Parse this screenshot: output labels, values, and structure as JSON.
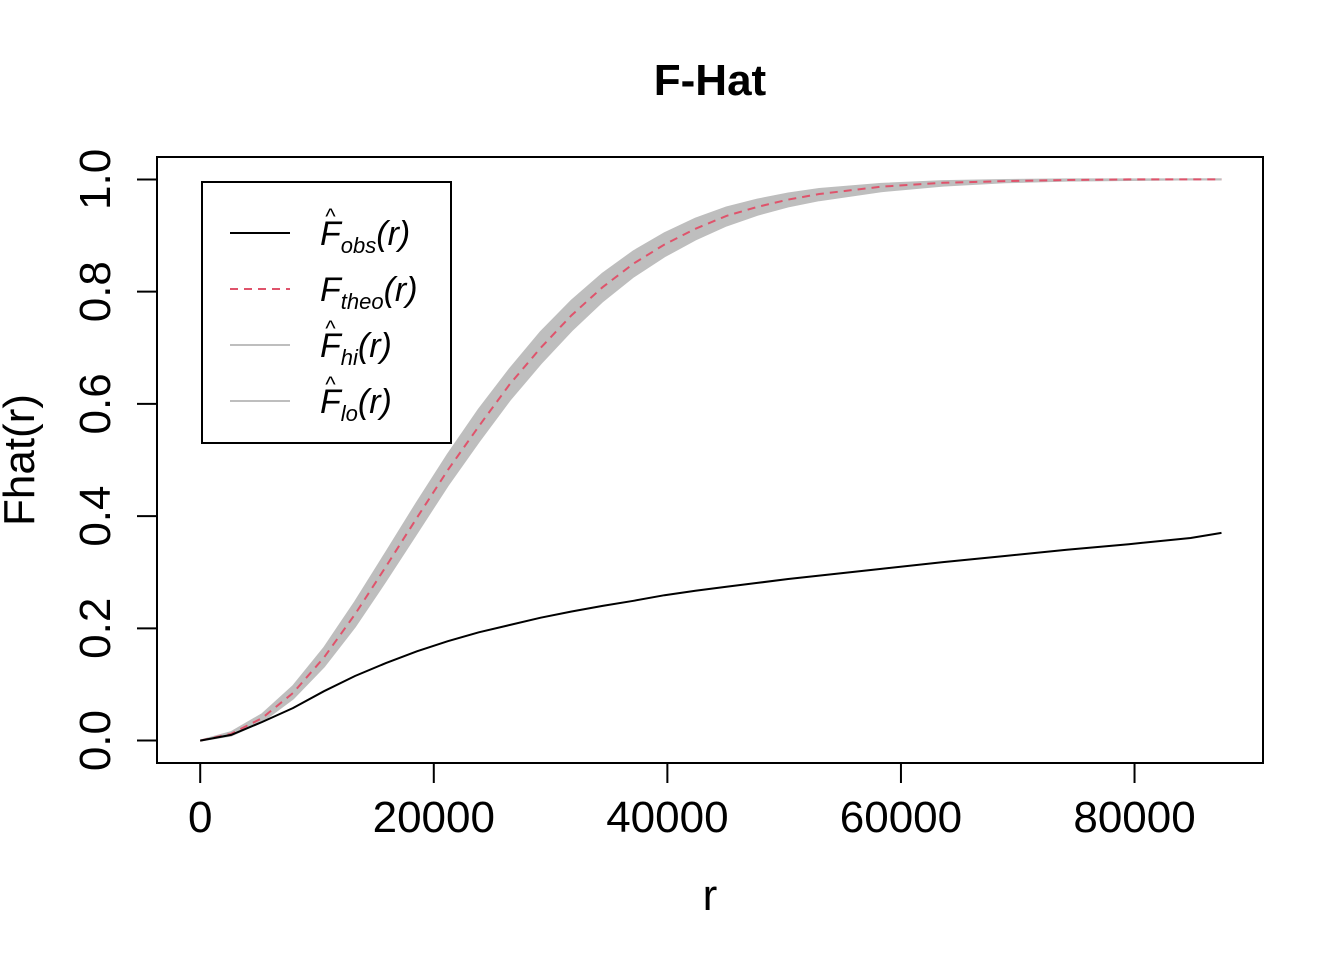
{
  "chart_data": {
    "type": "line",
    "title": "F-Hat",
    "xlabel": "r",
    "ylabel": "Fhat(r)",
    "xlim": [
      -3700,
      91000
    ],
    "ylim": [
      -0.04,
      1.04
    ],
    "x_ticks": [
      "0",
      "20000",
      "40000",
      "60000",
      "80000"
    ],
    "x_tick_values": [
      0,
      20000,
      40000,
      60000,
      80000
    ],
    "y_ticks": [
      "0.0",
      "0.2",
      "0.4",
      "0.6",
      "0.8",
      "1.0"
    ],
    "y_tick_values": [
      0.0,
      0.2,
      0.4,
      0.6,
      0.8,
      1.0
    ],
    "legend_position": "top-left",
    "legend": [
      {
        "base": "F",
        "hat": true,
        "sub": "obs",
        "arg": "(r)",
        "color": "#000000",
        "dash": "solid",
        "key": "obs"
      },
      {
        "base": "F",
        "hat": false,
        "sub": "theo",
        "arg": "(r)",
        "color": "#DF536B",
        "dash": "dashed",
        "key": "theo"
      },
      {
        "base": "F",
        "hat": true,
        "sub": "hi",
        "arg": "(r)",
        "color": "#BEBEBE",
        "dash": "solid",
        "key": "hi"
      },
      {
        "base": "F",
        "hat": true,
        "sub": "lo",
        "arg": "(r)",
        "color": "#BEBEBE",
        "dash": "solid",
        "key": "lo"
      }
    ],
    "x": [
      0,
      2650,
      5300,
      7950,
      10600,
      13250,
      15900,
      18550,
      21200,
      23850,
      26500,
      29150,
      31800,
      34450,
      37100,
      39750,
      42400,
      45050,
      47700,
      50350,
      53000,
      58300,
      63600,
      68900,
      74200,
      79500,
      84800,
      87450
    ],
    "series": [
      {
        "key": "obs",
        "color": "#000000",
        "dash": "solid",
        "values": [
          0.0,
          0.01,
          0.033,
          0.058,
          0.088,
          0.115,
          0.138,
          0.159,
          0.177,
          0.193,
          0.206,
          0.219,
          0.23,
          0.24,
          0.249,
          0.259,
          0.267,
          0.274,
          0.281,
          0.288,
          0.294,
          0.306,
          0.318,
          0.329,
          0.34,
          0.35,
          0.361,
          0.37
        ]
      },
      {
        "key": "theo",
        "color": "#DF536B",
        "dash": "dashed",
        "values": [
          0.0,
          0.012,
          0.04,
          0.085,
          0.148,
          0.225,
          0.31,
          0.397,
          0.482,
          0.56,
          0.635,
          0.7,
          0.758,
          0.808,
          0.85,
          0.884,
          0.912,
          0.935,
          0.951,
          0.964,
          0.974,
          0.987,
          0.994,
          0.997,
          0.999,
          1.0,
          1.0,
          1.0
        ]
      },
      {
        "key": "hi",
        "color": "#BEBEBE",
        "dash": "solid",
        "values": [
          0.0,
          0.015,
          0.047,
          0.097,
          0.165,
          0.247,
          0.335,
          0.424,
          0.51,
          0.59,
          0.662,
          0.728,
          0.784,
          0.832,
          0.872,
          0.904,
          0.93,
          0.95,
          0.964,
          0.975,
          0.983,
          0.992,
          0.997,
          0.999,
          1.0,
          1.0,
          1.0,
          1.0
        ]
      },
      {
        "key": "lo",
        "color": "#BEBEBE",
        "dash": "solid",
        "values": [
          0.0,
          0.009,
          0.034,
          0.075,
          0.132,
          0.203,
          0.285,
          0.37,
          0.455,
          0.533,
          0.607,
          0.672,
          0.731,
          0.783,
          0.827,
          0.863,
          0.893,
          0.918,
          0.937,
          0.952,
          0.963,
          0.979,
          0.989,
          0.995,
          0.998,
          0.999,
          1.0,
          1.0
        ]
      }
    ]
  }
}
